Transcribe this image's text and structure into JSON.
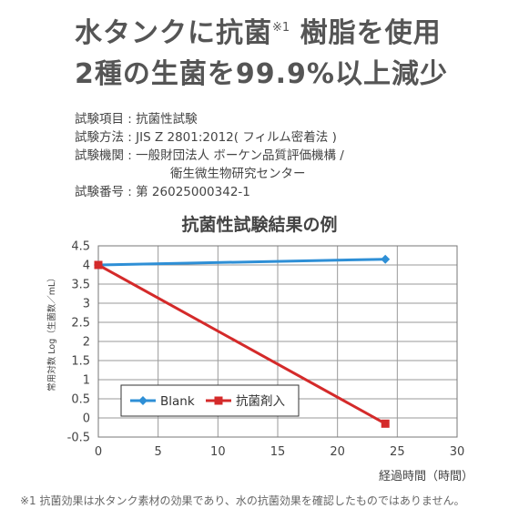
{
  "headline": {
    "line1_a": "水タンクに抗菌",
    "line1_note": "※1",
    "line1_b": " 樹脂を使用",
    "line2": "2種の生菌を99.9%以上減少"
  },
  "test_info": {
    "item": "試験項目 : 抗菌性試験",
    "method": "試験方法 : JIS Z 2801:2012( フィルム密着法 )",
    "agency_1": "試験機関 : 一般財団法人 ボーケン品質評価機構 /",
    "agency_2": "衛生微生物研究センター",
    "number": "試験番号 : 第 26025000342-1"
  },
  "chart_data": {
    "type": "line",
    "title": "抗菌性試験結果の例",
    "xlabel": "経過時間（時間）",
    "ylabel": "常用対数 Log（生菌数／mL）",
    "xlim": [
      0,
      30
    ],
    "ylim": [
      -0.5,
      4.5
    ],
    "x_ticks": [
      0,
      5,
      10,
      15,
      20,
      25,
      30
    ],
    "y_ticks": [
      4.5,
      4,
      3.5,
      3,
      2.5,
      2,
      1.5,
      1,
      0.5,
      0,
      -0.5
    ],
    "grid": true,
    "legend_position": "bottom-left",
    "series": [
      {
        "name": "Blank",
        "color": "#2e8fd6",
        "marker": "diamond",
        "x": [
          0,
          24
        ],
        "y": [
          4.0,
          4.15
        ]
      },
      {
        "name": "抗菌剤入",
        "color": "#d42a2a",
        "marker": "square",
        "x": [
          0,
          24
        ],
        "y": [
          4.0,
          -0.15
        ]
      }
    ]
  },
  "footnote": "※1 抗菌効果は水タンク素材の効果であり、水の抗菌効果を確認したものではありません。"
}
